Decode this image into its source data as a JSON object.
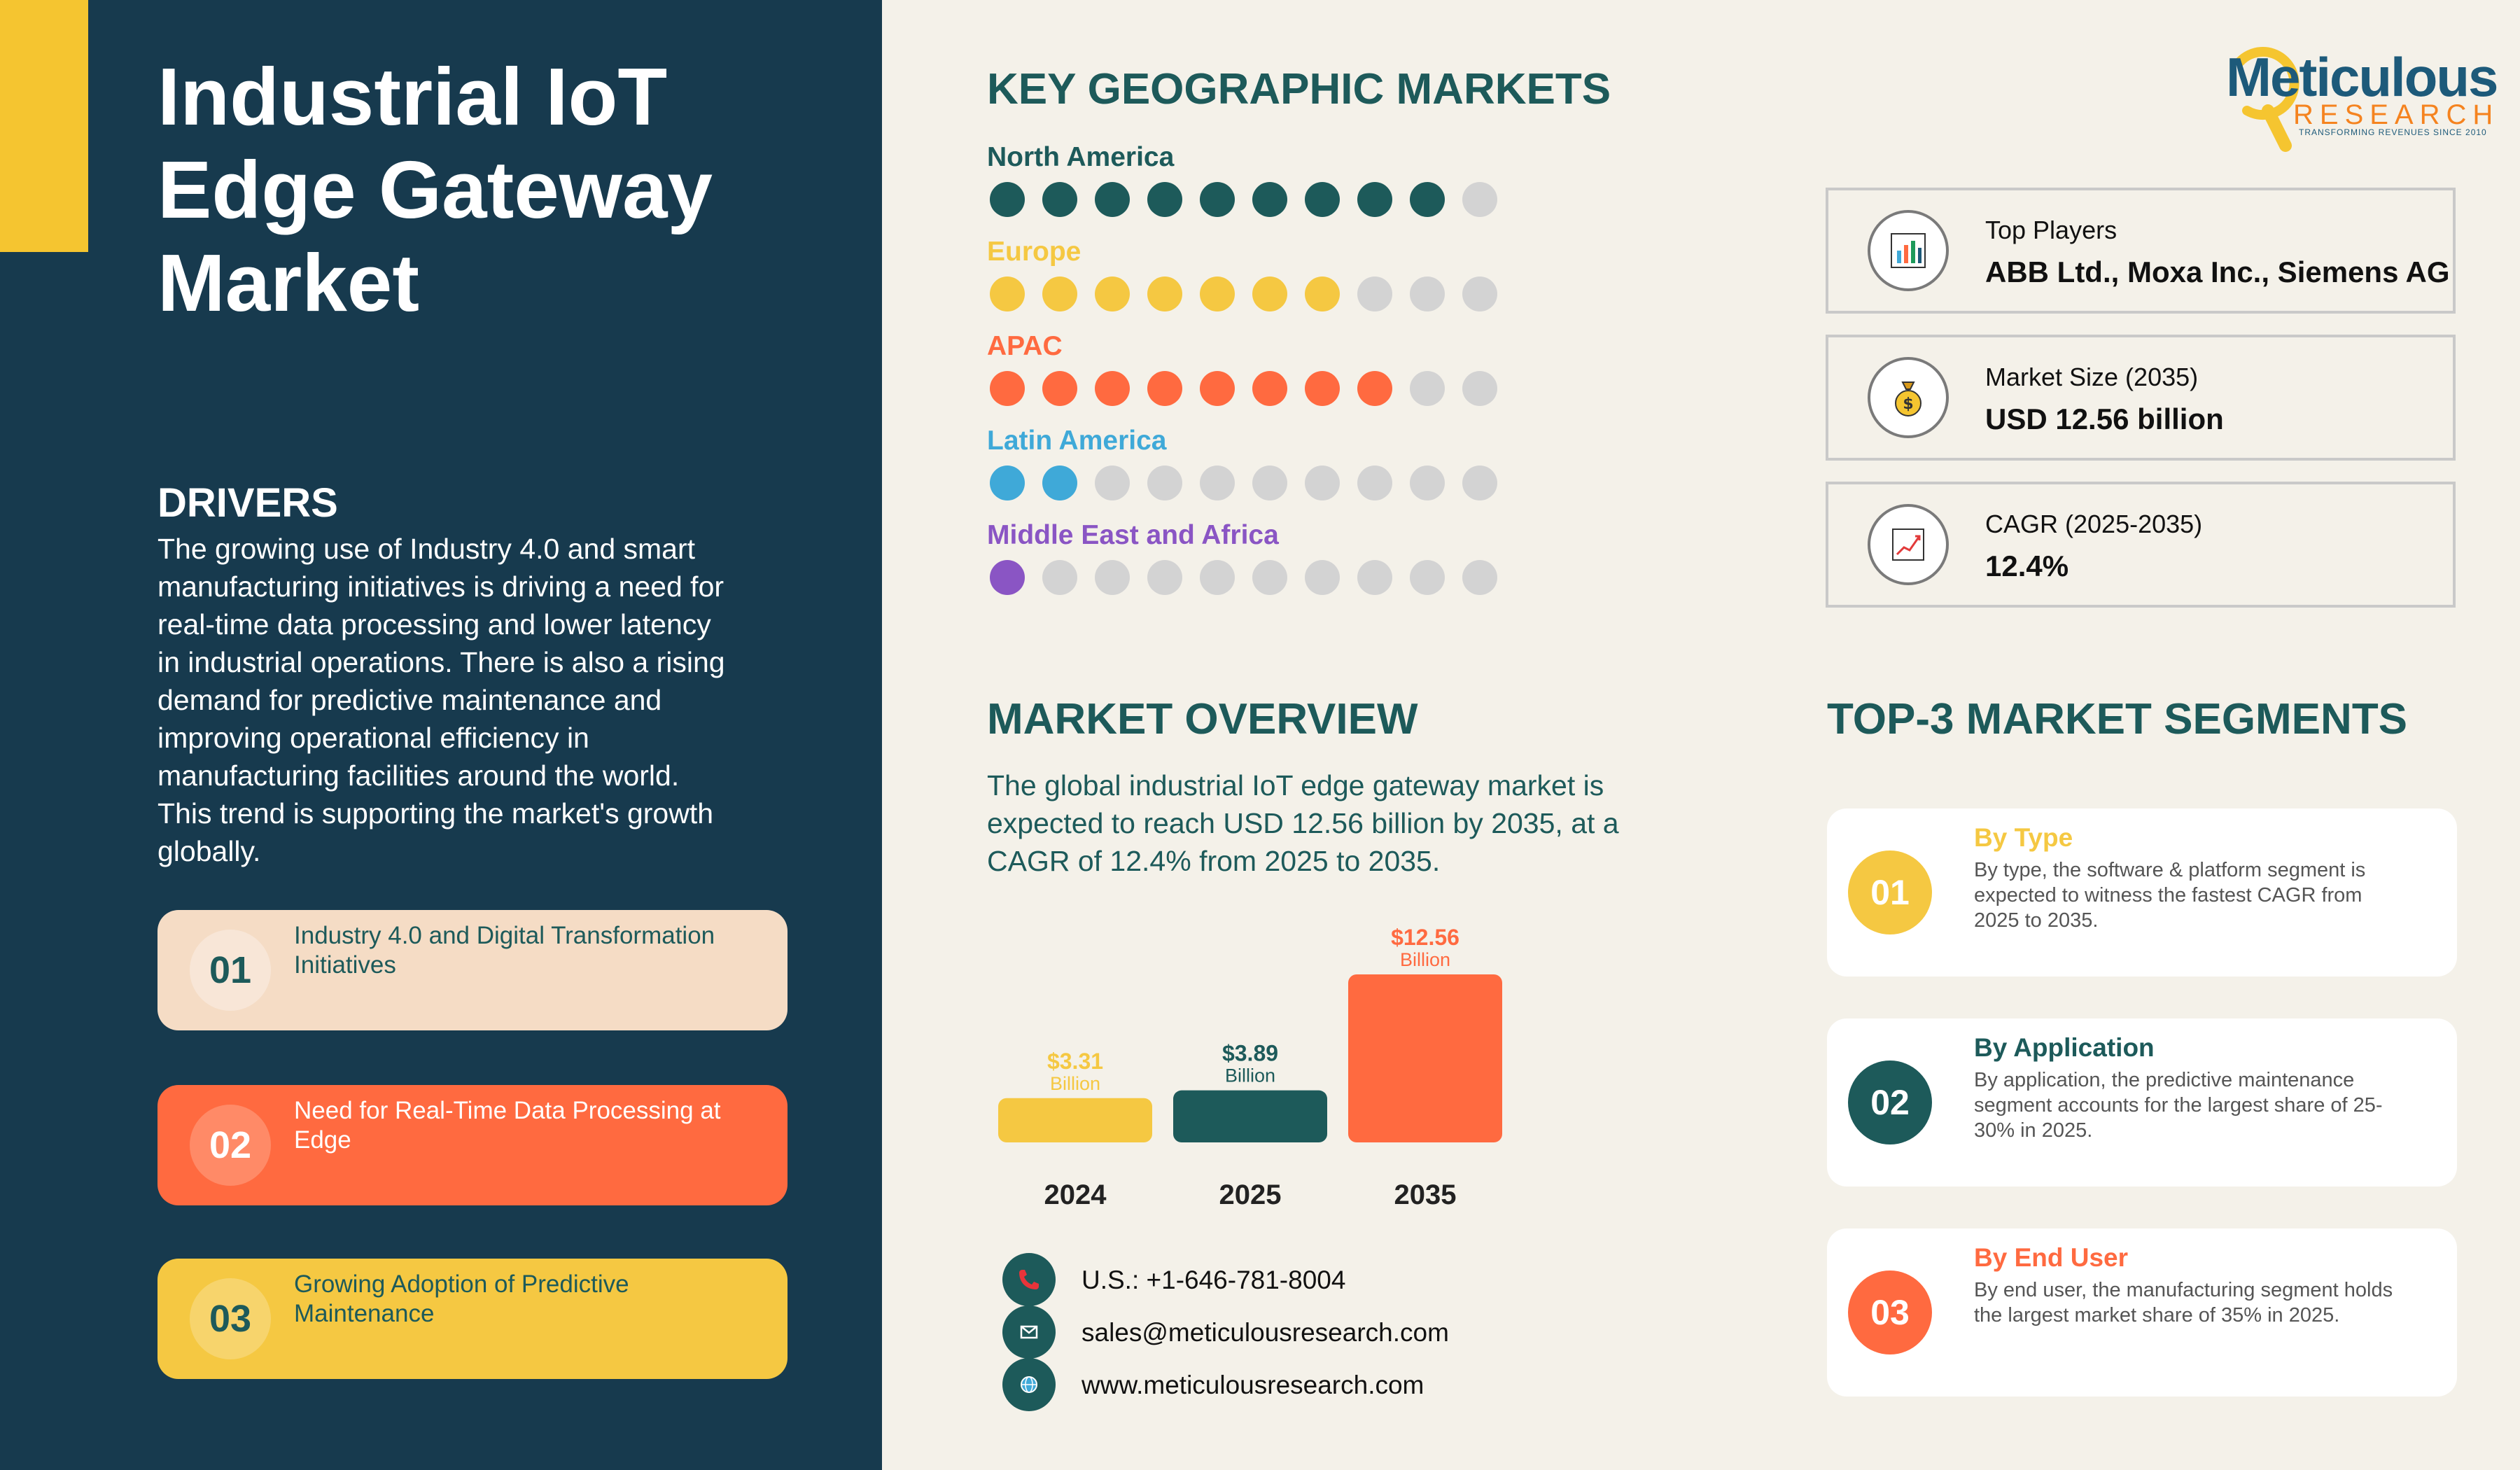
{
  "title": "Industrial IoT Edge Gateway Market",
  "drivers": {
    "heading": "DRIVERS",
    "text": "The growing use of Industry 4.0 and smart manufacturing initiatives is driving a need for real-time data processing and lower latency in industrial operations. There is also a rising demand for predictive maintenance and improving operational efficiency in manufacturing facilities around the world. This trend is supporting the market's growth globally.",
    "items": [
      {
        "num": "01",
        "text": "Industry 4.0 and Digital Transformation Initiatives",
        "bg": "#f5dcc5",
        "num_bg": "#f8e6d7",
        "num_color": "#1d5a5a",
        "text_color": "#1d5a5a"
      },
      {
        "num": "02",
        "text": "Need for Real-Time Data Processing at Edge",
        "bg": "#ff6a40",
        "num_bg": "#ff8a67",
        "num_color": "#ffffff",
        "text_color": "#ffffff"
      },
      {
        "num": "03",
        "text": "Growing Adoption of Predictive Maintenance",
        "bg": "#f5c842",
        "num_bg": "#f7d46c",
        "num_color": "#1d5a5a",
        "text_color": "#1d5a5a"
      }
    ]
  },
  "geographic": {
    "heading": "KEY GEOGRAPHIC MARKETS",
    "inactive_color": "#d3d3d3",
    "regions": [
      {
        "name": "North America",
        "filled": 9,
        "total": 10,
        "color": "#1d5a5a"
      },
      {
        "name": "Europe",
        "filled": 7,
        "total": 10,
        "color": "#f5c842"
      },
      {
        "name": "APAC",
        "filled": 8,
        "total": 10,
        "color": "#ff6a40"
      },
      {
        "name": "Latin America",
        "filled": 2,
        "total": 10,
        "color": "#3fa9d8"
      },
      {
        "name": "Middle East and Africa",
        "filled": 1,
        "total": 10,
        "color": "#8a55c4"
      }
    ]
  },
  "info_boxes": [
    {
      "label": "Top Players",
      "value": "ABB Ltd., Moxa Inc., Siemens AG",
      "icon": "bar-chart-icon"
    },
    {
      "label": "Market Size (2035)",
      "value": "USD 12.56 billion",
      "icon": "money-bag-icon"
    },
    {
      "label": "CAGR (2025-2035)",
      "value": "12.4%",
      "icon": "line-chart-icon"
    }
  ],
  "overview": {
    "heading": "MARKET OVERVIEW",
    "text": "The global industrial IoT edge gateway market is expected to reach USD 12.56 billion by 2035, at a CAGR of 12.4% from 2025 to 2035."
  },
  "chart_data": {
    "type": "bar",
    "categories": [
      "2024",
      "2025",
      "2035"
    ],
    "values": [
      3.31,
      3.89,
      12.56
    ],
    "value_labels": [
      "$3.31",
      "$3.89",
      "$12.56"
    ],
    "unit_label": "Billion",
    "colors": [
      "#f5c842",
      "#1d5a5a",
      "#ff6a40"
    ],
    "label_colors": [
      "#f5c842",
      "#1d5a5a",
      "#ff6a40"
    ],
    "title": "",
    "xlabel": "",
    "ylabel": ""
  },
  "contact": {
    "phone": "U.S.: +1-646-781-8004",
    "email": "sales@meticulousresearch.com",
    "website": "www.meticulousresearch.com"
  },
  "segments": {
    "heading": "TOP-3 MARKET SEGMENTS",
    "items": [
      {
        "num": "01",
        "title": "By Type",
        "text": "By type, the software & platform segment is expected to witness the fastest CAGR from 2025 to 2035.",
        "color": "#f5c842"
      },
      {
        "num": "02",
        "title": "By Application",
        "text": "By application, the predictive maintenance segment accounts for the largest share of 25-30% in 2025.",
        "color": "#1d5a5a"
      },
      {
        "num": "03",
        "title": "By End User",
        "text": "By end user, the manufacturing segment holds the largest market share of 35% in 2025.",
        "color": "#ff6a40"
      }
    ]
  },
  "logo": {
    "name": "Meticulous",
    "sub": "RESEARCH",
    "tagline": "TRANSFORMING REVENUES SINCE 2010"
  }
}
